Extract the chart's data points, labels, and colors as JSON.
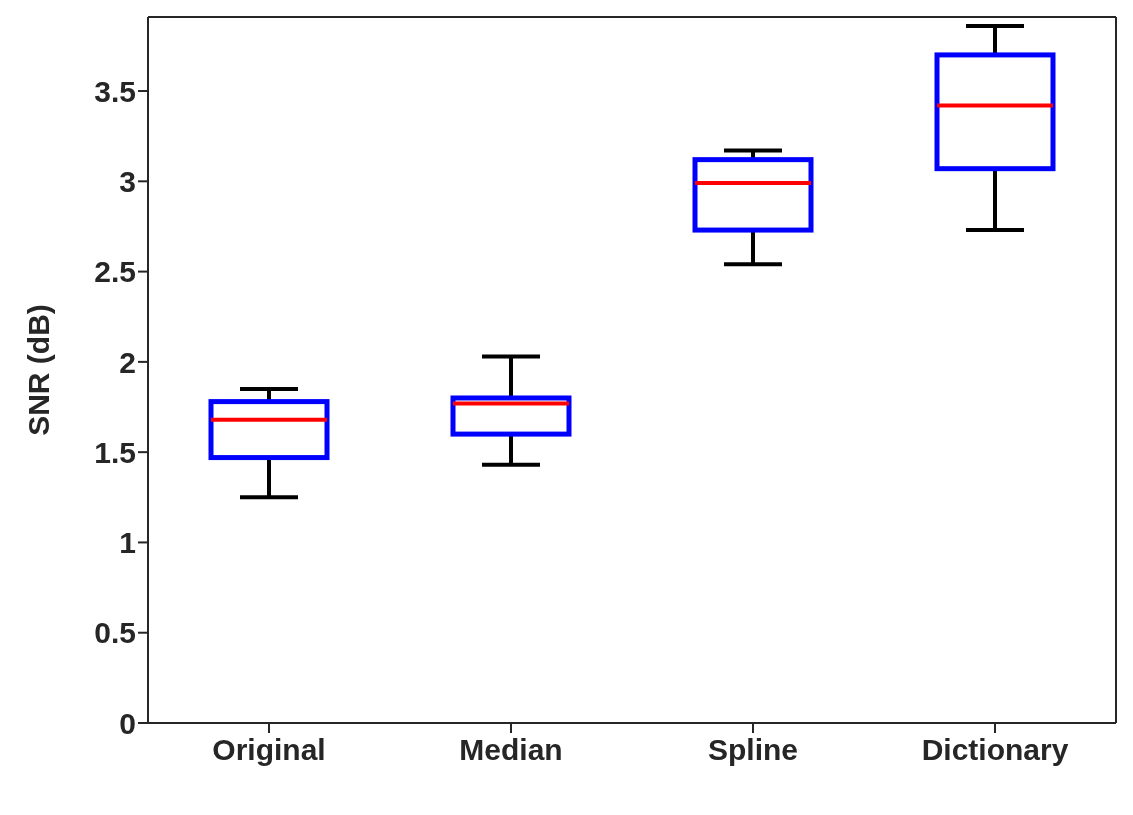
{
  "chart_data": {
    "type": "box",
    "ylabel": "SNR (dB)",
    "categories": [
      "Original",
      "Median",
      "Spline",
      "Dictionary"
    ],
    "color": "#0000ff",
    "boxes": [
      {
        "low": 1.25,
        "q1": 1.47,
        "median": 1.68,
        "q3": 1.78,
        "high": 1.85
      },
      {
        "low": 1.43,
        "q1": 1.6,
        "median": 1.77,
        "q3": 1.8,
        "high": 2.03
      },
      {
        "low": 2.54,
        "q1": 2.73,
        "median": 2.99,
        "q3": 3.12,
        "high": 3.17
      },
      {
        "low": 2.73,
        "q1": 3.07,
        "median": 3.42,
        "q3": 3.7,
        "high": 3.86
      }
    ],
    "ylim": [
      0,
      3.91
    ],
    "yticks": [
      0,
      0.5,
      1,
      1.5,
      2,
      2.5,
      3,
      3.5
    ],
    "grid": false
  }
}
